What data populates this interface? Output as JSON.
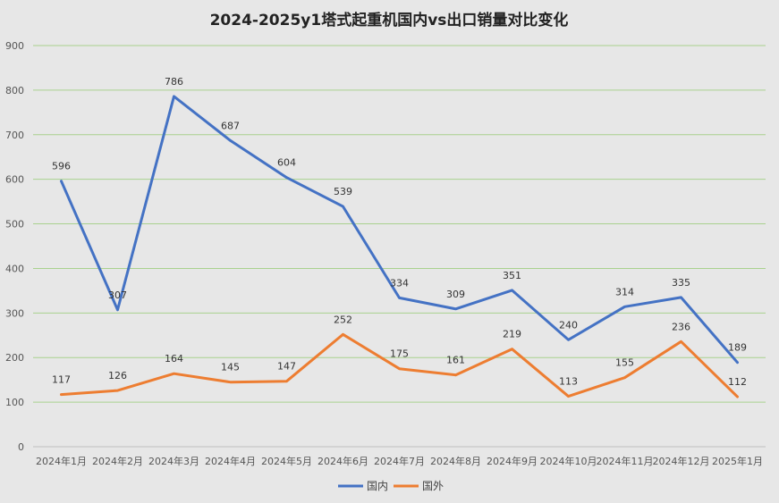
{
  "chart_data": {
    "type": "line",
    "title": "2024-2025y1塔式起重机国内vs出口销量对比变化",
    "categories": [
      "2024年1月",
      "2024年2月",
      "2024年3月",
      "2024年4月",
      "2024年5月",
      "2024年6月",
      "2024年7月",
      "2024年8月",
      "2024年9月",
      "2024年10月",
      "2024年11月",
      "2024年12月",
      "2025年1月"
    ],
    "series": [
      {
        "name": "国内",
        "color": "#4472c4",
        "values": [
          596,
          307,
          786,
          687,
          604,
          539,
          334,
          309,
          351,
          240,
          314,
          335,
          189
        ]
      },
      {
        "name": "国外",
        "color": "#ed7d31",
        "values": [
          117,
          126,
          164,
          145,
          147,
          252,
          175,
          161,
          219,
          113,
          155,
          236,
          112
        ]
      }
    ],
    "ylim": [
      0,
      900
    ],
    "yticks": [
      0,
      100,
      200,
      300,
      400,
      500,
      600,
      700,
      800,
      900
    ],
    "grid": true,
    "gridColor": "#a9d18e",
    "legend": "bottom"
  }
}
